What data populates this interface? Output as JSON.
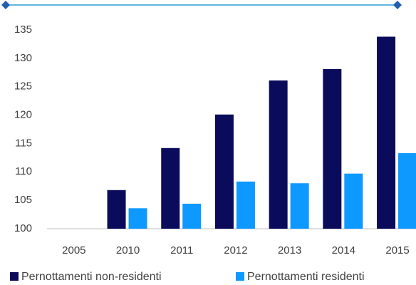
{
  "chart_data": {
    "type": "bar",
    "categories": [
      "2005",
      "2010",
      "2011",
      "2012",
      "2013",
      "2014",
      "2015"
    ],
    "series": [
      {
        "name": "Pernottamenti non-residenti",
        "color": "#0b0b5c",
        "values": [
          null,
          106.8,
          114.2,
          120.1,
          126.1,
          128.1,
          133.8
        ]
      },
      {
        "name": "Pernottamenti residenti",
        "color": "#0d99ff",
        "values": [
          null,
          103.6,
          104.4,
          108.3,
          108.0,
          109.7,
          113.3
        ]
      }
    ],
    "ylim": [
      100,
      137.5
    ],
    "yticks": [
      100,
      105,
      110,
      115,
      120,
      125,
      130,
      135
    ],
    "grid": false,
    "legend": "bottom"
  }
}
